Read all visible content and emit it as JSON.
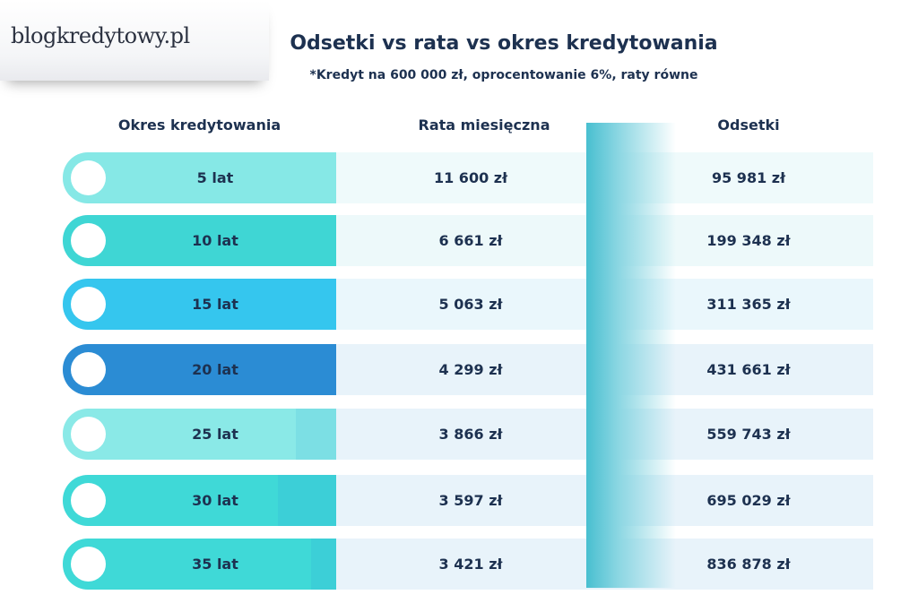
{
  "brand": {
    "logo_text": "blogkredytowy.pl"
  },
  "chart_data": {
    "type": "table",
    "title": "Odsetki vs rata vs okres kredytowania",
    "subtitle": "*Kredyt na 600 000 zł, oprocentowanie 6%, raty równe",
    "columns": [
      "Okres kredytowania",
      "Rata miesięczna",
      "Odsetki"
    ],
    "rows": [
      {
        "period": "5 lat",
        "years": 5,
        "rate": "11 600 zł",
        "rate_value": 11600,
        "interest": "95 981 zł",
        "interest_value": 95981,
        "color": "#86e8e6",
        "shade": "#86e8e6",
        "cell_bg": "#effafb"
      },
      {
        "period": "10 lat",
        "years": 10,
        "rate": "6 661 zł",
        "rate_value": 6661,
        "interest": "199 348 zł",
        "interest_value": 199348,
        "color": "#3fd6d4",
        "shade": "#3fd6d4",
        "cell_bg": "#edf9fa"
      },
      {
        "period": "15 lat",
        "years": 15,
        "rate": "5 063 zł",
        "rate_value": 5063,
        "interest": "311 365 zł",
        "interest_value": 311365,
        "color": "#35c6ee",
        "shade": "#35c6ee",
        "cell_bg": "#eaf7fc"
      },
      {
        "period": "20 lat",
        "years": 20,
        "rate": "4 299 zł",
        "rate_value": 4299,
        "interest": "431 661 zł",
        "interest_value": 431661,
        "color": "#2b8cd4",
        "shade": "#2b8cd4",
        "cell_bg": "#e8f3fa"
      },
      {
        "period": "25 lat",
        "years": 25,
        "rate": "3 866 zł",
        "rate_value": 3866,
        "interest": "559 743 zł",
        "interest_value": 559743,
        "color": "#8ae9e7",
        "shade": "#7cdfe4",
        "cell_bg": "#e8f3fa"
      },
      {
        "period": "30 lat",
        "years": 30,
        "rate": "3 597 zł",
        "rate_value": 3597,
        "interest": "695 029 zł",
        "interest_value": 695029,
        "color": "#3fd9d7",
        "shade": "#3ccfd7",
        "cell_bg": "#e8f3fa"
      },
      {
        "period": "35 lat",
        "years": 35,
        "rate": "3 421 zł",
        "rate_value": 3421,
        "interest": "836 878 zł",
        "interest_value": 836878,
        "color": "#3fd9d7",
        "shade": "#3ccfd7",
        "cell_bg": "#e8f3fa"
      }
    ]
  }
}
